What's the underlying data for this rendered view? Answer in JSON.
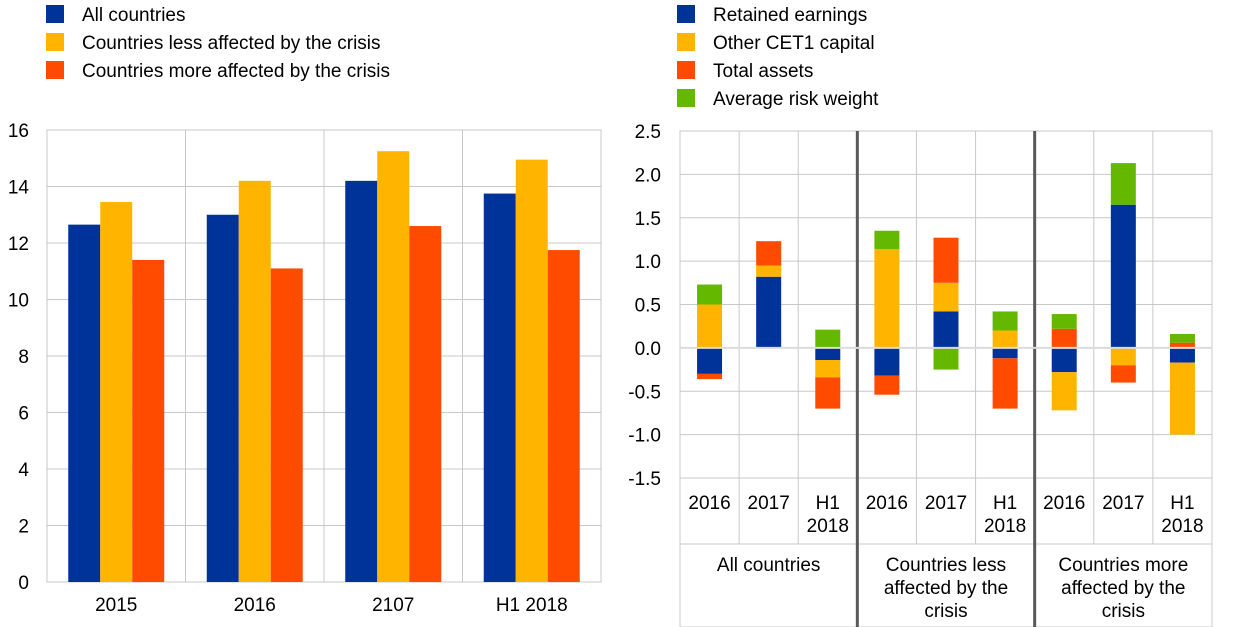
{
  "colors": {
    "blue": "#003399",
    "yellow": "#FFB400",
    "orange": "#FF4B00",
    "green": "#65B800"
  },
  "chart_data": [
    {
      "type": "bar",
      "title": "",
      "xlabel": "",
      "ylabel": "",
      "ylim": [
        0,
        16
      ],
      "yticks": [
        "0",
        "2",
        "4",
        "6",
        "8",
        "10",
        "12",
        "14",
        "16"
      ],
      "grid": true,
      "legend": "top-left",
      "categories": [
        "2015",
        "2016",
        "2107",
        "H1 2018"
      ],
      "series": [
        {
          "name": "All countries",
          "color": "#003399",
          "values": [
            12.65,
            13.0,
            14.2,
            13.75
          ]
        },
        {
          "name": "Countries less affected by the crisis",
          "color": "#FFB400",
          "values": [
            13.45,
            14.2,
            15.25,
            14.95
          ]
        },
        {
          "name": "Countries more affected by the crisis",
          "color": "#FF4B00",
          "values": [
            11.4,
            11.1,
            12.6,
            11.75
          ]
        }
      ]
    },
    {
      "type": "bar",
      "stacked": true,
      "title": "",
      "xlabel": "",
      "ylabel": "",
      "ylim": [
        -1.5,
        2.5
      ],
      "yticks": [
        "-1.5",
        "-1.0",
        "-0.5",
        "0.0",
        "0.5",
        "1.0",
        "1.5",
        "2.0",
        "2.5"
      ],
      "grid": true,
      "legend": "top-left",
      "groups": [
        {
          "label": "All countries",
          "categories": [
            "2016",
            "2017",
            "H1 2018"
          ]
        },
        {
          "label": "Countries less affected by the crisis",
          "categories": [
            "2016",
            "2017",
            "H1 2018"
          ]
        },
        {
          "label": "Countries more affected by the crisis",
          "categories": [
            "2016",
            "2017",
            "H1 2018"
          ]
        }
      ],
      "series": [
        {
          "name": "Retained earnings",
          "color": "#003399",
          "values": [
            -0.3,
            0.82,
            -0.14,
            -0.32,
            0.42,
            -0.12,
            -0.28,
            1.65,
            -0.17
          ]
        },
        {
          "name": "Other CET1 capital",
          "color": "#FFB400",
          "values": [
            0.5,
            0.13,
            -0.2,
            1.14,
            0.33,
            0.2,
            -0.44,
            -0.2,
            -0.83
          ]
        },
        {
          "name": "Total assets",
          "color": "#FF4B00",
          "values": [
            -0.06,
            0.28,
            -0.36,
            -0.22,
            0.52,
            -0.58,
            0.22,
            -0.2,
            0.06
          ]
        },
        {
          "name": "Average risk weight",
          "color": "#65B800",
          "values": [
            0.23,
            0.0,
            0.21,
            0.21,
            -0.25,
            0.22,
            0.17,
            0.48,
            0.1
          ]
        }
      ]
    }
  ]
}
